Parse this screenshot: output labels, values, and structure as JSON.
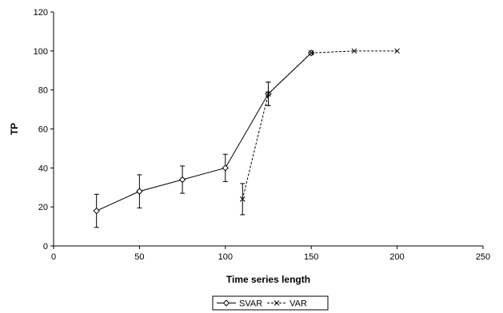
{
  "chart_data": {
    "type": "line",
    "title": "",
    "xlabel": "Time series length",
    "ylabel": "TP",
    "xlim": [
      0,
      250
    ],
    "ylim": [
      0,
      120
    ],
    "xticks": [
      0,
      50,
      100,
      150,
      200,
      250
    ],
    "yticks": [
      0,
      20,
      40,
      60,
      80,
      100,
      120
    ],
    "grid": false,
    "legend_position": "bottom-center",
    "series": [
      {
        "name": "SVAR",
        "marker": "diamond",
        "line_style": "solid",
        "color": "#000000",
        "points": [
          {
            "x": 25,
            "y": 18,
            "err": 8.5
          },
          {
            "x": 50,
            "y": 28,
            "err": 8.5
          },
          {
            "x": 75,
            "y": 34,
            "err": 7
          },
          {
            "x": 100,
            "y": 40,
            "err": 7
          },
          {
            "x": 125,
            "y": 78,
            "err": 6
          },
          {
            "x": 150,
            "y": 99
          }
        ]
      },
      {
        "name": "VAR",
        "marker": "x",
        "line_style": "dashed",
        "color": "#000000",
        "points": [
          {
            "x": 110,
            "y": 24,
            "err": 8
          },
          {
            "x": 125,
            "y": 78,
            "err": 6
          },
          {
            "x": 150,
            "y": 99
          },
          {
            "x": 175,
            "y": 100
          },
          {
            "x": 200,
            "y": 100
          }
        ]
      }
    ]
  }
}
